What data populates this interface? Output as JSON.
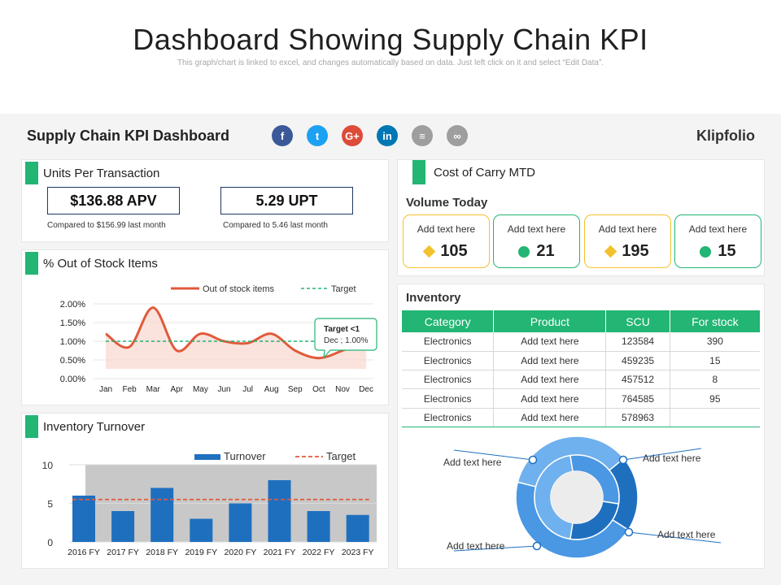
{
  "header": {
    "title": "Dashboard Showing Supply Chain KPI",
    "subtitle": "This graph/chart is linked to excel, and changes automatically based on data. Just left click on it and select “Edit Data”."
  },
  "dashboard": {
    "title": "Supply Chain KPI Dashboard",
    "brand": "Klipfolio",
    "social": [
      {
        "icon": "facebook-icon",
        "glyph": "f",
        "color": "#3b5998"
      },
      {
        "icon": "twitter-icon",
        "glyph": "t",
        "color": "#1da1f2"
      },
      {
        "icon": "google-plus-icon",
        "glyph": "G+",
        "color": "#dd4b39"
      },
      {
        "icon": "linkedin-icon",
        "glyph": "in",
        "color": "#0077b5"
      },
      {
        "icon": "document-icon",
        "glyph": "≡",
        "color": "#9e9e9e"
      },
      {
        "icon": "link-icon",
        "glyph": "∞",
        "color": "#9e9e9e"
      }
    ]
  },
  "upt": {
    "title": "Units Per Transaction",
    "apv": "$136.88 APV",
    "apv_note": "Compared to $156.99 last month",
    "upt_value": "5.29 UPT",
    "upt_note": "Compared to 5.46 last month"
  },
  "cost_of_carry": {
    "title": "Cost of Carry MTD"
  },
  "volume": {
    "title": "Volume Today",
    "cards": [
      {
        "label": "Add text here",
        "value": "105",
        "marker": "diamond",
        "border": "#f2c12e"
      },
      {
        "label": "Add text here",
        "value": "21",
        "marker": "dot",
        "border": "#22b573"
      },
      {
        "label": "Add text here",
        "value": "195",
        "marker": "diamond",
        "border": "#f2c12e"
      },
      {
        "label": "Add text here",
        "value": "15",
        "marker": "dot",
        "border": "#22b573"
      }
    ]
  },
  "inventory": {
    "title": "Inventory",
    "columns": [
      "Category",
      "Product",
      "SCU",
      "For stock"
    ],
    "rows": [
      [
        "Electronics",
        "Add text here",
        "123584",
        "390"
      ],
      [
        "Electronics",
        "Add text here",
        "459235",
        "15"
      ],
      [
        "Electronics",
        "Add text here",
        "457512",
        "8"
      ],
      [
        "Electronics",
        "Add text here",
        "764585",
        "95"
      ],
      [
        "Electronics",
        "Add text here",
        "578963",
        ""
      ]
    ]
  },
  "chart_data": [
    {
      "type": "line",
      "title": "% Out of Stock Items",
      "categories": [
        "Jan",
        "Feb",
        "Mar",
        "Apr",
        "May",
        "Jun",
        "Jul",
        "Aug",
        "Sep",
        "Oct",
        "Nov",
        "Dec"
      ],
      "series": [
        {
          "name": "Out of stock items",
          "values": [
            1.2,
            0.85,
            1.9,
            0.75,
            1.2,
            1.0,
            0.95,
            1.2,
            0.75,
            0.55,
            0.75,
            1.0
          ],
          "color": "#e05a3a"
        },
        {
          "name": "Target",
          "values": [
            1.0,
            1.0,
            1.0,
            1.0,
            1.0,
            1.0,
            1.0,
            1.0,
            1.0,
            1.0,
            1.0,
            1.0
          ],
          "color": "#22b573",
          "dashed": true
        }
      ],
      "ylim": [
        0,
        2
      ],
      "yticks": [
        "0.00%",
        "0.50%",
        "1.00%",
        "1.50%",
        "2.00%"
      ],
      "callout": {
        "title": "Target <1",
        "text": "Dec ; 1.00%"
      },
      "legend": "top"
    },
    {
      "type": "bar",
      "title": "Inventory  Turnover",
      "categories": [
        "2016  FY",
        "2017 FY",
        "2018 FY",
        "2019 FY",
        "2020 FY",
        "2021 FY",
        "2022 FY",
        "2023 FY"
      ],
      "series": [
        {
          "name": "Turnover",
          "values": [
            6,
            4,
            7,
            3,
            5,
            8,
            4,
            3.5
          ],
          "color": "#1f6fbf"
        },
        {
          "name": "Target",
          "values": [
            5.5,
            5.5,
            5.5,
            5.5,
            5.5,
            5.5,
            5.5,
            5.5
          ],
          "color": "#e05a3a",
          "dashed": true
        }
      ],
      "ylim": [
        0,
        10
      ],
      "yticks": [
        "0",
        "5",
        "10"
      ],
      "legend": "top"
    },
    {
      "type": "pie",
      "subtype": "donut",
      "labels": [
        "Add text here",
        "Add text here",
        "Add text here",
        "Add text here"
      ],
      "outer_ring": [
        {
          "value": 35,
          "color": "#6fb0ee"
        },
        {
          "value": 20,
          "color": "#1f6fbf"
        },
        {
          "value": 45,
          "color": "#4a97e3"
        }
      ],
      "inner_ring": [
        {
          "value": 30,
          "color": "#4a97e3"
        },
        {
          "value": 25,
          "color": "#1f6fbf"
        },
        {
          "value": 45,
          "color": "#6fb0ee"
        }
      ]
    }
  ]
}
